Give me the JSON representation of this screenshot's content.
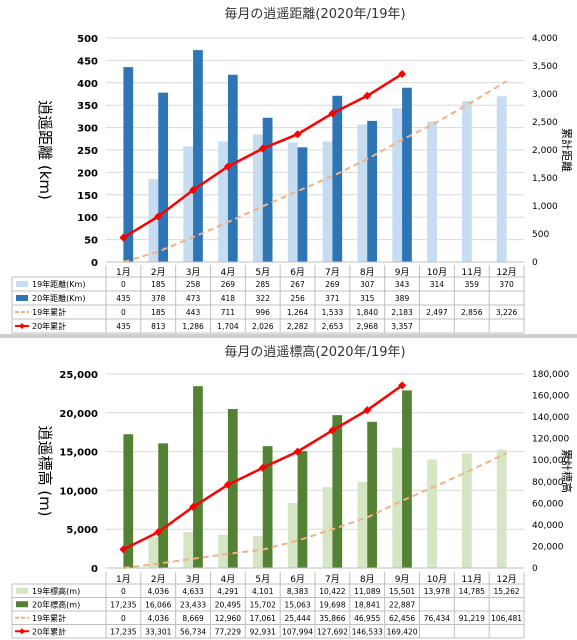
{
  "chart_data": [
    {
      "type": "bar",
      "title": "毎月の逍遥距離(2020年/19年)",
      "ylabel": "逍遥距離 (km)",
      "y2label": "累計距離",
      "categories": [
        "1月",
        "2月",
        "3月",
        "4月",
        "5月",
        "6月",
        "7月",
        "8月",
        "9月",
        "10月",
        "11月",
        "12月"
      ],
      "ylim": [
        0,
        500
      ],
      "y_ticks": [
        0,
        50,
        100,
        150,
        200,
        250,
        300,
        350,
        400,
        450,
        500
      ],
      "y2lim": [
        0,
        4000
      ],
      "y2_ticks": [
        0,
        500,
        1000,
        1500,
        2000,
        2500,
        3000,
        3500,
        4000
      ],
      "y2_tick_labels": [
        "0",
        "500",
        "1,000",
        "1,500",
        "2,000",
        "2,500",
        "3,000",
        "3,500",
        "4,000"
      ],
      "grid": true,
      "colors": {
        "bar19": "#c6dcf0",
        "bar20": "#2e75b6",
        "cum19": "#f4b183",
        "cum20": "#ff0000"
      },
      "series": [
        {
          "name": "19年距離(Km)",
          "kind": "bar",
          "color": "#c6dcf0",
          "values": [
            0,
            185,
            258,
            269,
            285,
            267,
            269,
            307,
            343,
            314,
            359,
            370
          ],
          "labels": [
            "0",
            "185",
            "258",
            "269",
            "285",
            "267",
            "269",
            "307",
            "343",
            "314",
            "359",
            "370"
          ]
        },
        {
          "name": "20年距離(Km)",
          "kind": "bar",
          "color": "#2e75b6",
          "values": [
            435,
            378,
            473,
            418,
            322,
            256,
            371,
            315,
            389,
            null,
            null,
            null
          ],
          "labels": [
            "435",
            "378",
            "473",
            "418",
            "322",
            "256",
            "371",
            "315",
            "389",
            "",
            "",
            ""
          ]
        },
        {
          "name": "19年累計",
          "kind": "dashed-line",
          "axis": "right",
          "color": "#f4b183",
          "values": [
            0,
            185,
            443,
            711,
            996,
            1264,
            1533,
            1840,
            2183,
            2497,
            2856,
            3226
          ],
          "labels": [
            "0",
            "185",
            "443",
            "711",
            "996",
            "1,264",
            "1,533",
            "1,840",
            "2,183",
            "2,497",
            "2,856",
            "3,226"
          ]
        },
        {
          "name": "20年累計",
          "kind": "line-marker",
          "axis": "right",
          "color": "#ff0000",
          "values": [
            435,
            813,
            1286,
            1704,
            2026,
            2282,
            2653,
            2968,
            3357,
            null,
            null,
            null
          ],
          "labels": [
            "435",
            "813",
            "1,286",
            "1,704",
            "2,026",
            "2,282",
            "2,653",
            "2,968",
            "3,357",
            "",
            "",
            ""
          ]
        }
      ]
    },
    {
      "type": "bar",
      "title": "毎月の逍遥標高(2020年/19年)",
      "ylabel": "逍遥標高 (m)",
      "y2label": "累計標高",
      "categories": [
        "1月",
        "2月",
        "3月",
        "4月",
        "5月",
        "6月",
        "7月",
        "8月",
        "9月",
        "10月",
        "11月",
        "12月"
      ],
      "ylim": [
        0,
        25000
      ],
      "y_ticks": [
        0,
        5000,
        10000,
        15000,
        20000,
        25000
      ],
      "y_tick_labels": [
        "0",
        "5,000",
        "10,000",
        "15,000",
        "20,000",
        "25,000"
      ],
      "y2lim": [
        0,
        180000
      ],
      "y2_ticks": [
        0,
        20000,
        40000,
        60000,
        80000,
        100000,
        120000,
        140000,
        160000,
        180000
      ],
      "y2_tick_labels": [
        "0",
        "20,000",
        "40,000",
        "60,000",
        "80,000",
        "100,000",
        "120,000",
        "140,000",
        "160,000",
        "180,000"
      ],
      "grid": true,
      "colors": {
        "bar19": "#d4e6c3",
        "bar20": "#548235",
        "cum19": "#f4b183",
        "cum20": "#ff0000"
      },
      "series": [
        {
          "name": "19年標高(m)",
          "kind": "bar",
          "color": "#d4e6c3",
          "values": [
            0,
            4036,
            4633,
            4291,
            4101,
            8383,
            10422,
            11089,
            15501,
            13978,
            14785,
            15262
          ],
          "labels": [
            "0",
            "4,036",
            "4,633",
            "4,291",
            "4,101",
            "8,383",
            "10,422",
            "11,089",
            "15,501",
            "13,978",
            "14,785",
            "15,262"
          ]
        },
        {
          "name": "20年標高(m)",
          "kind": "bar",
          "color": "#548235",
          "values": [
            17235,
            16066,
            23433,
            20495,
            15702,
            15063,
            19698,
            18841,
            22887,
            null,
            null,
            null
          ],
          "labels": [
            "17,235",
            "16,066",
            "23,433",
            "20,495",
            "15,702",
            "15,063",
            "19,698",
            "18,841",
            "22,887",
            "",
            "",
            ""
          ]
        },
        {
          "name": "19年累計",
          "kind": "dashed-line",
          "axis": "right",
          "color": "#f4b183",
          "values": [
            0,
            4036,
            8669,
            12960,
            17061,
            25444,
            35866,
            46955,
            62456,
            76434,
            91219,
            106481
          ],
          "labels": [
            "0",
            "4,036",
            "8,669",
            "12,960",
            "17,061",
            "25,444",
            "35,866",
            "46,955",
            "62,456",
            "76,434",
            "91,219",
            "106,481"
          ]
        },
        {
          "name": "20年累計",
          "kind": "line-marker",
          "axis": "right",
          "color": "#ff0000",
          "values": [
            17235,
            33301,
            56734,
            77229,
            92931,
            107994,
            127692,
            146533,
            169420,
            null,
            null,
            null
          ],
          "labels": [
            "17,235",
            "33,301",
            "56,734",
            "77,229",
            "92,931",
            "107,994",
            "127,692",
            "146,533",
            "169,420",
            "",
            "",
            ""
          ]
        }
      ]
    }
  ]
}
